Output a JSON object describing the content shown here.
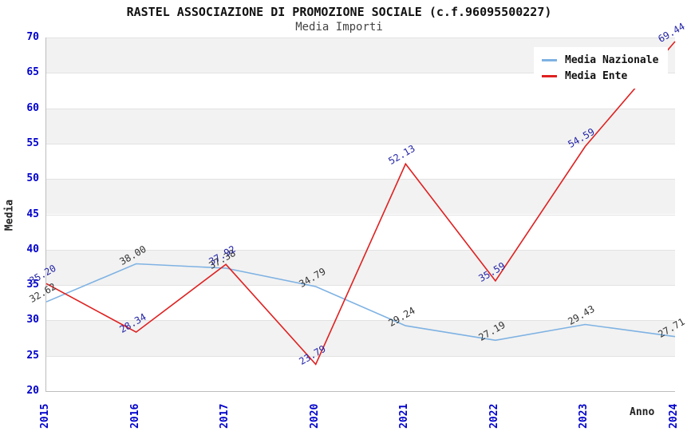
{
  "chart_data": {
    "type": "line",
    "title": "RASTEL ASSOCIAZIONE DI PROMOZIONE SOCIALE (c.f.96095500227)",
    "subtitle": "Media Importi",
    "xlabel": "Anno",
    "ylabel": "Media",
    "categories": [
      "2015",
      "2016",
      "2017",
      "2020",
      "2021",
      "2022",
      "2023",
      "2024"
    ],
    "series": [
      {
        "name": "Media Nazionale",
        "color": "#7EB2E3",
        "label_color": "#333333",
        "values": [
          32.62,
          38.0,
          37.38,
          34.79,
          29.24,
          27.19,
          29.43,
          27.71
        ]
      },
      {
        "name": "Media Ente",
        "color": "#DF2020",
        "label_color": "#2424A8",
        "values": [
          35.2,
          28.34,
          37.92,
          23.79,
          52.13,
          35.59,
          54.59,
          69.44
        ]
      }
    ],
    "ylim": [
      20,
      70
    ],
    "ytick_step": 5,
    "yticks": [
      "20",
      "25",
      "30",
      "35",
      "40",
      "45",
      "50",
      "55",
      "60",
      "65",
      "70"
    ],
    "grid": true,
    "legend_position": "top-right",
    "band_fill": "#F2F2F2",
    "band_alt_fill": "#FFFFFF",
    "gridline_color": "#E2E2E2",
    "axis_tick_color": "#0000CC",
    "label_rotation_deg": -30,
    "value_format": "two_decimals"
  }
}
